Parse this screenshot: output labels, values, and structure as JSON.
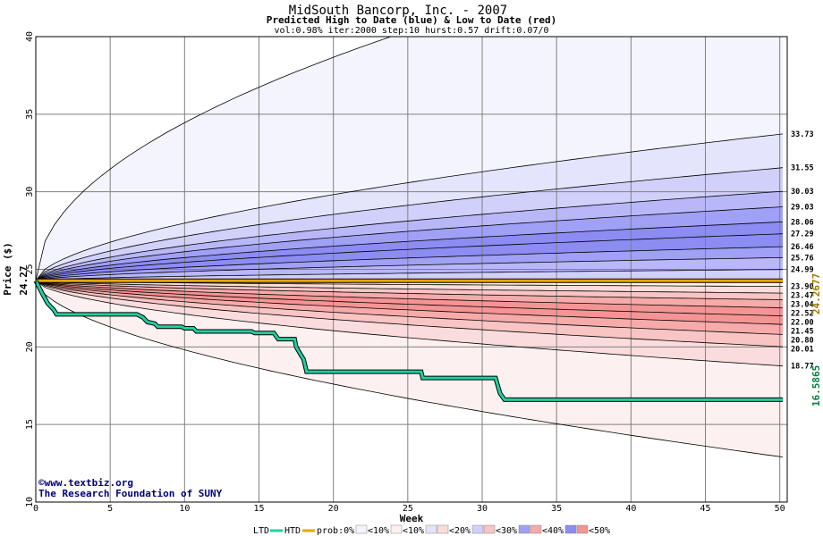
{
  "chart_data": {
    "type": "area",
    "title": "MidSouth Bancorp, Inc. - 2007",
    "subtitle": "Predicted High to Date (blue) &  Low to Date (red)",
    "params": "vol:0.98% iter:2000 step:10 hurst:0.57 drift:0.07/0",
    "xlabel": "Week",
    "ylabel": "Price ($)",
    "xlim": [
      0,
      50.5
    ],
    "ylim": [
      10,
      40
    ],
    "xticks": [
      0,
      5,
      10,
      15,
      20,
      25,
      30,
      35,
      40,
      45,
      50
    ],
    "yticks": [
      10,
      15,
      20,
      25,
      30,
      35,
      40
    ],
    "grid": true,
    "start_price": 24.27,
    "start_label": "24.27",
    "current_label": "24.2677",
    "ltd_label": "16.5865",
    "ltd_color": "#008040",
    "current_color": "#a07800",
    "upper_bands": [
      {
        "label": "",
        "end": 41.0,
        "apex_week": 27,
        "fill": "#f4f4fe"
      },
      {
        "label": "33.73",
        "end": 33.73,
        "fill": "#e4e4fd"
      },
      {
        "label": "31.55",
        "end": 31.55,
        "fill": "#d0d0fb"
      },
      {
        "label": "30.03",
        "end": 30.03,
        "fill": "#b8b8f9"
      },
      {
        "label": "29.03",
        "end": 29.03,
        "fill": "#a0a0f6"
      },
      {
        "label": "28.06",
        "end": 28.06,
        "fill": "#8c8cf3"
      },
      {
        "label": "27.29",
        "end": 27.29,
        "fill": "#8c8cf3"
      },
      {
        "label": "26.46",
        "end": 26.46,
        "fill": "#a0a0f6"
      },
      {
        "label": "25.76",
        "end": 25.76,
        "fill": "#b8b8f9"
      },
      {
        "label": "24.99",
        "end": 24.99,
        "fill": "#d0d0fb"
      }
    ],
    "lower_bands": [
      {
        "label": "",
        "end": 12.9,
        "fill": "#fdf0f0"
      },
      {
        "label": "18.77",
        "end": 18.77,
        "fill": "#fbdcdc"
      },
      {
        "label": "20.01",
        "end": 20.01,
        "fill": "#f9c4c4"
      },
      {
        "label": "20.80",
        "end": 20.8,
        "fill": "#f7aaaa"
      },
      {
        "label": "21.45",
        "end": 21.45,
        "fill": "#f59494"
      },
      {
        "label": "22.00",
        "end": 22.0,
        "fill": "#f59494"
      },
      {
        "label": "22.52",
        "end": 22.52,
        "fill": "#f7aaaa"
      },
      {
        "label": "23.04",
        "end": 23.04,
        "fill": "#f9c4c4"
      },
      {
        "label": "23.47",
        "end": 23.47,
        "fill": "#fbdcdc"
      },
      {
        "label": "23.90",
        "end": 23.9,
        "fill": "#fdf0f0"
      }
    ],
    "high_to_date": {
      "name": "HTD",
      "color": "#e8a800",
      "values": [
        [
          0,
          24.27
        ],
        [
          50.2,
          24.27
        ]
      ]
    },
    "low_to_date": {
      "name": "LTD",
      "color": "#20d0a0",
      "values": [
        [
          0,
          24.27
        ],
        [
          0.4,
          23.5
        ],
        [
          0.8,
          22.8
        ],
        [
          1.2,
          22.4
        ],
        [
          1.4,
          22.1
        ],
        [
          6.8,
          22.1
        ],
        [
          7.2,
          21.9
        ],
        [
          7.5,
          21.6
        ],
        [
          8.0,
          21.5
        ],
        [
          8.2,
          21.3
        ],
        [
          9.8,
          21.3
        ],
        [
          10.0,
          21.2
        ],
        [
          10.6,
          21.2
        ],
        [
          10.8,
          21.0
        ],
        [
          14.5,
          21.0
        ],
        [
          14.7,
          20.9
        ],
        [
          16.0,
          20.9
        ],
        [
          16.3,
          20.5
        ],
        [
          17.4,
          20.5
        ],
        [
          17.5,
          20.0
        ],
        [
          17.8,
          19.5
        ],
        [
          18.0,
          19.2
        ],
        [
          18.2,
          18.4
        ],
        [
          25.9,
          18.4
        ],
        [
          26.0,
          18.0
        ],
        [
          30.9,
          18.0
        ],
        [
          31.2,
          17.0
        ],
        [
          31.5,
          16.6
        ],
        [
          50.2,
          16.6
        ]
      ]
    },
    "legend": {
      "ltd": "LTD",
      "htd": "HTD",
      "prob": "prob:0%",
      "items": [
        {
          "label": "<10%",
          "color": "#f4f4fe"
        },
        {
          "label": "<10%",
          "color": "#fdf0f0"
        },
        {
          "label": "<20%",
          "color": "#e4e4fd"
        },
        {
          "label": "<20%",
          "color": "#fbdcdc"
        },
        {
          "label": "<30%",
          "color": "#d0d0fb"
        },
        {
          "label": "<30%",
          "color": "#f9c4c4"
        },
        {
          "label": "<40%",
          "color": "#a0a0f6"
        },
        {
          "label": "<40%",
          "color": "#f7aaaa"
        },
        {
          "label": "<50%",
          "color": "#8c8cf3"
        },
        {
          "label": "<50%",
          "color": "#f59494"
        }
      ]
    }
  },
  "credits": {
    "symbol": "©",
    "site": "www.textbiz.org",
    "org": "The Research Foundation of SUNY"
  }
}
